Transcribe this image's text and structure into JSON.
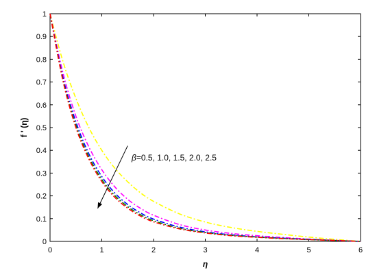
{
  "chart_data": {
    "type": "line",
    "xlabel": "η",
    "ylabel": "f ' (η)",
    "xlim": [
      0,
      6
    ],
    "ylim": [
      0,
      1
    ],
    "xticks": [
      "0",
      "1",
      "2",
      "3",
      "4",
      "5",
      "6"
    ],
    "yticks": [
      "0",
      "0.1",
      "0.2",
      "0.3",
      "0.4",
      "0.5",
      "0.6",
      "0.7",
      "0.8",
      "0.9",
      "1"
    ],
    "grid": false,
    "annotation": {
      "symbol": "β",
      "text": "=0.5, 1.0, 1.5, 2.0, 2.5",
      "arrow_from": [
        1.5,
        0.42
      ],
      "arrow_to": [
        0.92,
        0.145
      ]
    },
    "x": [
      0,
      0.25,
      0.5,
      0.75,
      1.0,
      1.25,
      1.5,
      1.75,
      2.0,
      2.5,
      3.0,
      3.5,
      4.0,
      4.5,
      5.0,
      5.5,
      6.0
    ],
    "series": [
      {
        "color": "#ffff00",
        "dash": "7,3,2,3",
        "values": [
          1.0,
          0.79,
          0.628,
          0.5,
          0.4,
          0.322,
          0.262,
          0.213,
          0.176,
          0.121,
          0.085,
          0.061,
          0.044,
          0.031,
          0.019,
          0.009,
          0.0
        ]
      },
      {
        "color": "#ff00ff",
        "dash": "7,3,2,3",
        "values": [
          1.0,
          0.74,
          0.55,
          0.415,
          0.315,
          0.24,
          0.185,
          0.145,
          0.115,
          0.074,
          0.05,
          0.035,
          0.025,
          0.017,
          0.01,
          0.005,
          0.0
        ]
      },
      {
        "color": "#0000ff",
        "dash": "7,3,2,3",
        "values": [
          1.0,
          0.72,
          0.525,
          0.385,
          0.285,
          0.213,
          0.162,
          0.125,
          0.098,
          0.063,
          0.042,
          0.029,
          0.02,
          0.014,
          0.009,
          0.004,
          0.0
        ]
      },
      {
        "color": "#008000",
        "dash": "7,3,2,3",
        "values": [
          1.0,
          0.71,
          0.51,
          0.372,
          0.272,
          0.202,
          0.153,
          0.117,
          0.091,
          0.058,
          0.039,
          0.027,
          0.019,
          0.013,
          0.008,
          0.004,
          0.0
        ]
      },
      {
        "color": "#ff0000",
        "dash": "7,3,2,3",
        "values": [
          1.0,
          0.705,
          0.5,
          0.362,
          0.263,
          0.194,
          0.146,
          0.111,
          0.086,
          0.055,
          0.037,
          0.025,
          0.018,
          0.012,
          0.008,
          0.004,
          0.0
        ]
      }
    ]
  }
}
